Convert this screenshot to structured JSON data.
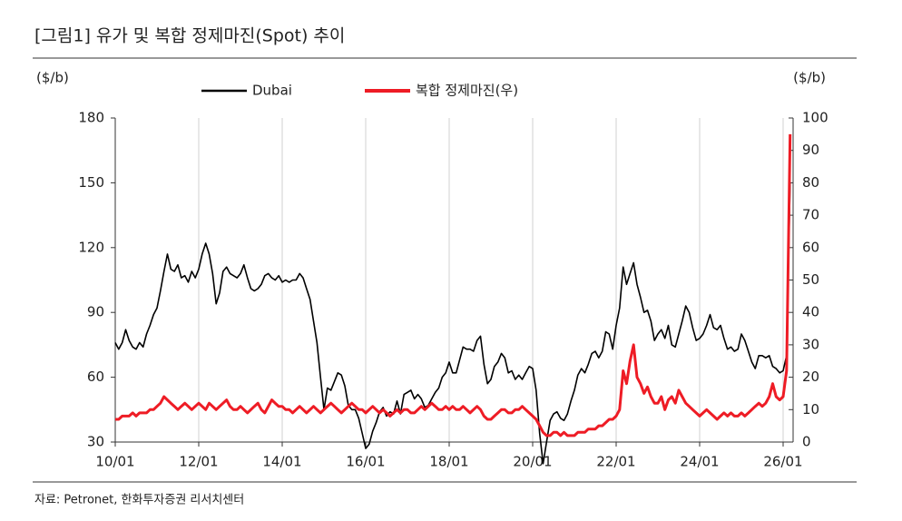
{
  "chart_data": {
    "type": "line",
    "title": "[그림1]    유가 및 복합 정제마진(Spot) 추이",
    "ylabel": "($/b)",
    "y2label": "($/b)",
    "source": "자료: Petronet, 한화투자증권 리서치센터",
    "categories": [
      "10/01",
      null,
      null,
      null,
      null,
      null,
      null,
      null,
      null,
      null,
      null,
      null,
      null,
      null,
      null,
      null,
      null,
      null,
      null,
      null,
      null,
      null,
      null,
      null,
      "12/01",
      null,
      null,
      null,
      null,
      null,
      null,
      null,
      null,
      null,
      null,
      null,
      null,
      null,
      null,
      null,
      null,
      null,
      null,
      null,
      null,
      null,
      null,
      null,
      "14/01",
      null,
      null,
      null,
      null,
      null,
      null,
      null,
      null,
      null,
      null,
      null,
      null,
      null,
      null,
      null,
      null,
      null,
      null,
      null,
      null,
      null,
      null,
      null,
      "16/01",
      null,
      null,
      null,
      null,
      null,
      null,
      null,
      null,
      null,
      null,
      null,
      null,
      null,
      null,
      null,
      null,
      null,
      null,
      null,
      null,
      null,
      null,
      null,
      "18/01",
      null,
      null,
      null,
      null,
      null,
      null,
      null,
      null,
      null,
      null,
      null,
      null,
      null,
      null,
      null,
      null,
      null,
      null,
      null,
      null,
      null,
      null,
      null,
      "20/01",
      null,
      null,
      null,
      null,
      null,
      null,
      null,
      null,
      null,
      null,
      null,
      null,
      null,
      null,
      null,
      null,
      null,
      null,
      null,
      null,
      null,
      null,
      null,
      "22/01",
      null,
      null,
      null,
      null,
      null,
      null,
      null,
      null,
      null,
      null,
      null,
      null,
      null,
      null,
      null,
      null,
      null,
      null,
      null,
      null,
      null,
      null,
      null,
      "24/01",
      null,
      null,
      null,
      null,
      null,
      null,
      null,
      null,
      null,
      null,
      null,
      null,
      null,
      null,
      null,
      null,
      null,
      null,
      null,
      null,
      null,
      null,
      null,
      "26/01",
      null,
      null
    ],
    "series": [
      {
        "name": "Dubai",
        "color": "#000000",
        "axis": "y",
        "values": [
          76,
          73,
          76,
          82,
          77,
          74,
          73,
          76,
          74,
          80,
          84,
          89,
          92,
          100,
          109,
          117,
          110,
          109,
          112,
          106,
          107,
          104,
          109,
          106,
          110,
          117,
          122,
          117,
          108,
          94,
          99,
          109,
          111,
          108,
          107,
          106,
          108,
          112,
          106,
          101,
          100,
          101,
          103,
          107,
          108,
          106,
          105,
          107,
          104,
          105,
          104,
          105,
          105,
          108,
          106,
          101,
          96,
          86,
          76,
          60,
          45,
          55,
          54,
          58,
          62,
          61,
          56,
          47,
          45,
          45,
          41,
          34,
          27,
          29,
          35,
          39,
          44,
          46,
          42,
          44,
          43,
          49,
          43,
          52,
          53,
          54,
          50,
          52,
          50,
          46,
          47,
          50,
          53,
          55,
          60,
          62,
          67,
          62,
          62,
          68,
          74,
          73,
          73,
          72,
          77,
          79,
          66,
          57,
          59,
          65,
          67,
          71,
          69,
          62,
          63,
          59,
          61,
          59,
          62,
          65,
          64,
          54,
          34,
          20,
          30,
          40,
          43,
          44,
          41,
          40,
          43,
          49,
          54,
          61,
          64,
          62,
          66,
          71,
          72,
          69,
          72,
          81,
          80,
          73,
          84,
          92,
          111,
          103,
          108,
          113,
          103,
          97,
          90,
          91,
          86,
          77,
          80,
          82,
          78,
          84,
          75,
          74,
          80,
          86,
          93,
          90,
          83,
          77,
          78,
          80,
          84,
          89,
          83,
          82,
          84,
          78,
          73,
          74,
          72,
          73,
          80,
          77,
          72,
          67,
          64,
          70,
          70,
          69,
          70,
          65,
          64,
          62,
          63,
          70,
          150
        ]
      },
      {
        "name": "복합 정제마진(우)",
        "color": "#ee1c25",
        "axis": "y2",
        "values": [
          7,
          7,
          8,
          8,
          8,
          9,
          8,
          9,
          9,
          9,
          10,
          10,
          11,
          12,
          14,
          13,
          12,
          11,
          10,
          11,
          12,
          11,
          10,
          11,
          12,
          11,
          10,
          12,
          11,
          10,
          11,
          12,
          13,
          11,
          10,
          10,
          11,
          10,
          9,
          10,
          11,
          12,
          10,
          9,
          11,
          13,
          12,
          11,
          11,
          10,
          10,
          9,
          10,
          11,
          10,
          9,
          10,
          11,
          10,
          9,
          10,
          11,
          12,
          11,
          10,
          9,
          10,
          11,
          12,
          11,
          10,
          10,
          9,
          10,
          11,
          10,
          9,
          10,
          9,
          8,
          9,
          10,
          9,
          10,
          10,
          9,
          9,
          10,
          11,
          10,
          11,
          12,
          11,
          10,
          10,
          11,
          10,
          11,
          10,
          10,
          11,
          10,
          9,
          10,
          11,
          10,
          8,
          7,
          7,
          8,
          9,
          10,
          10,
          9,
          9,
          10,
          10,
          11,
          10,
          9,
          8,
          7,
          5,
          3,
          2,
          2,
          3,
          3,
          2,
          3,
          2,
          2,
          2,
          3,
          3,
          3,
          4,
          4,
          4,
          5,
          5,
          6,
          7,
          7,
          8,
          10,
          22,
          18,
          25,
          30,
          20,
          18,
          15,
          17,
          14,
          12,
          12,
          14,
          10,
          13,
          14,
          12,
          16,
          14,
          12,
          11,
          10,
          9,
          8,
          9,
          10,
          9,
          8,
          7,
          8,
          9,
          8,
          9,
          8,
          8,
          9,
          8,
          9,
          10,
          11,
          12,
          11,
          12,
          14,
          18,
          14,
          13,
          14,
          22,
          95
        ]
      }
    ],
    "ylim": [
      30,
      180
    ],
    "yticks": [
      30,
      60,
      90,
      120,
      150,
      180
    ],
    "y2lim": [
      0,
      100
    ],
    "y2ticks": [
      0,
      10,
      20,
      30,
      40,
      50,
      60,
      70,
      80,
      90,
      100
    ],
    "grid": true
  }
}
